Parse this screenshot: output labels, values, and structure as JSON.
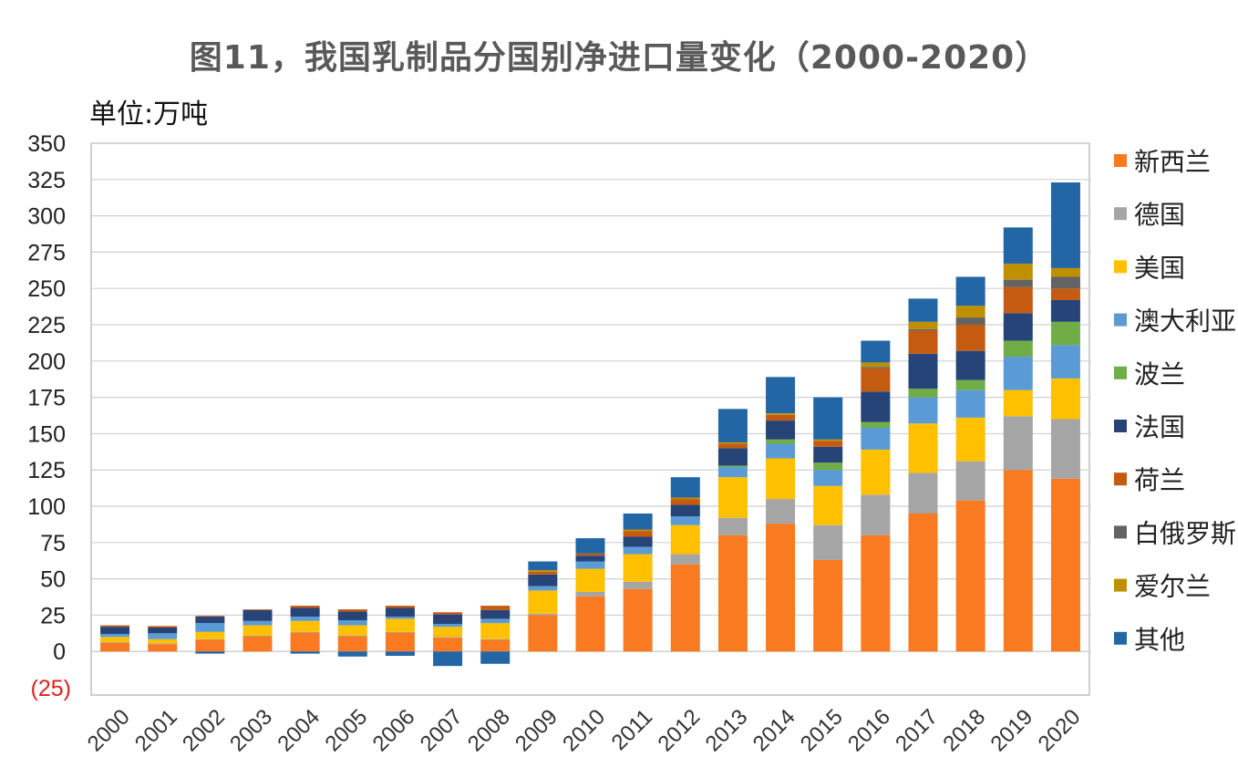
{
  "chart_data": {
    "type": "bar",
    "stacked": true,
    "title": "图11，我国乳制品分国别净进口量变化（2000-2020）",
    "unit_label": "单位:万吨",
    "categories": [
      "2000",
      "2001",
      "2002",
      "2003",
      "2004",
      "2005",
      "2006",
      "2007",
      "2008",
      "2009",
      "2010",
      "2011",
      "2012",
      "2013",
      "2014",
      "2015",
      "2016",
      "2017",
      "2018",
      "2019",
      "2020"
    ],
    "ylim": [
      -30,
      350
    ],
    "yticks": [
      -25,
      0,
      25,
      50,
      75,
      100,
      125,
      150,
      175,
      200,
      225,
      250,
      275,
      300,
      325,
      350
    ],
    "ytick_labels": [
      "(25)",
      "0",
      "25",
      "50",
      "75",
      "100",
      "125",
      "150",
      "175",
      "200",
      "225",
      "250",
      "275",
      "300",
      "325",
      "350"
    ],
    "negative_label_color": "#E02020",
    "grid": true,
    "legend_position": "right",
    "series": [
      {
        "name": "新西兰",
        "color": "#F97A20",
        "values": [
          6,
          5,
          8,
          10.5,
          13,
          10.5,
          13,
          9.5,
          8,
          25,
          38,
          43,
          60,
          80,
          88,
          63,
          80,
          95,
          104,
          125,
          119
        ]
      },
      {
        "name": "德国",
        "color": "#A5A5A5",
        "values": [
          0.5,
          0.5,
          0.5,
          0.5,
          0.5,
          0.5,
          0.5,
          0.5,
          0.5,
          1,
          3,
          5,
          7,
          12,
          17,
          24,
          28,
          28,
          27,
          37,
          41
        ]
      },
      {
        "name": "美国",
        "color": "#FFC000",
        "values": [
          3.5,
          3,
          5,
          7,
          7.5,
          7,
          9,
          7,
          11,
          16,
          16,
          19,
          20,
          28,
          28,
          27,
          31,
          34,
          30,
          18,
          28
        ]
      },
      {
        "name": "澳大利亚",
        "color": "#5B9BD5",
        "values": [
          2,
          4,
          6,
          3,
          3,
          3.5,
          1.5,
          2,
          3,
          3,
          5,
          5,
          6,
          7,
          10,
          11,
          15,
          18,
          19,
          23,
          23
        ]
      },
      {
        "name": "波兰",
        "color": "#70AD47",
        "values": [
          0,
          0,
          0,
          0,
          0,
          0,
          0,
          0,
          0,
          0,
          0,
          0,
          0,
          1,
          3,
          5,
          4,
          6,
          7,
          11,
          16
        ]
      },
      {
        "name": "法国",
        "color": "#264478",
        "values": [
          5,
          4,
          4.5,
          7.5,
          6,
          6,
          6,
          6.5,
          6,
          8,
          4,
          7,
          8,
          12,
          13,
          11,
          21,
          24,
          20,
          19,
          15
        ]
      },
      {
        "name": "荷兰",
        "color": "#C55A11",
        "values": [
          1,
          1,
          0.5,
          0.5,
          1.5,
          1.5,
          1.5,
          1.5,
          3,
          2,
          1,
          4,
          4,
          3,
          4,
          4,
          16,
          16,
          18,
          18,
          8
        ]
      },
      {
        "name": "白俄罗斯",
        "color": "#636363",
        "values": [
          0,
          0,
          0,
          0,
          0,
          0,
          0,
          0,
          0,
          0,
          1,
          0,
          0,
          0,
          0,
          0,
          1,
          1,
          5,
          5,
          8
        ]
      },
      {
        "name": "爱尔兰",
        "color": "#BF8F00",
        "values": [
          0,
          0,
          0,
          0,
          0,
          0,
          0,
          0,
          0,
          1,
          0,
          1,
          1,
          1,
          1,
          1,
          3,
          5,
          8,
          11,
          6
        ]
      },
      {
        "name": "其他",
        "color": "#2366A6",
        "values": [
          0,
          0,
          -1.5,
          0,
          -1.5,
          -3.5,
          -3,
          -10,
          -8.5,
          6,
          10,
          11,
          14,
          23,
          25,
          29,
          15,
          16,
          20,
          25,
          59
        ]
      }
    ]
  }
}
